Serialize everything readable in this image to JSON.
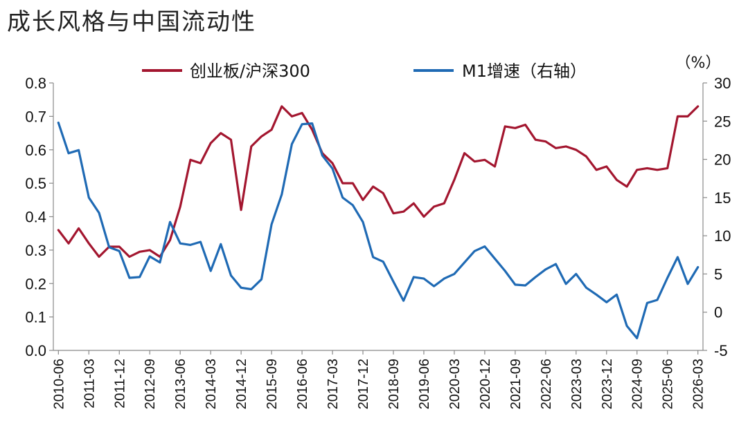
{
  "chart_data": {
    "type": "line",
    "title": "成长风格与中国流动性",
    "x": [
      "2010-06",
      "2010-09",
      "2010-12",
      "2011-03",
      "2011-06",
      "2011-09",
      "2011-12",
      "2012-03",
      "2012-06",
      "2012-09",
      "2012-12",
      "2013-03",
      "2013-06",
      "2013-09",
      "2013-12",
      "2014-03",
      "2014-06",
      "2014-09",
      "2014-12",
      "2015-03",
      "2015-06",
      "2015-09",
      "2015-12",
      "2016-03",
      "2016-06",
      "2016-09",
      "2016-12",
      "2017-03",
      "2017-06",
      "2017-09",
      "2017-12",
      "2018-03",
      "2018-06",
      "2018-09",
      "2018-12",
      "2019-03",
      "2019-06",
      "2019-09",
      "2019-12",
      "2020-03",
      "2020-06",
      "2020-09",
      "2020-12",
      "2021-03",
      "2021-06",
      "2021-09",
      "2021-12",
      "2022-03",
      "2022-06",
      "2022-09",
      "2022-12",
      "2023-03",
      "2023-06",
      "2023-09",
      "2023-12",
      "2024-03",
      "2024-06",
      "2024-09",
      "2024-12",
      "2025-03",
      "2025-06",
      "2025-09",
      "2025-12",
      "2026-03"
    ],
    "xtick_labels": [
      "2010-06",
      "2011-03",
      "2011-12",
      "2012-09",
      "2013-06",
      "2014-03",
      "2014-12",
      "2015-09",
      "2016-06",
      "2017-03",
      "2017-12",
      "2018-09",
      "2019-06",
      "2020-03",
      "2020-12",
      "2021-09",
      "2022-06",
      "2023-03",
      "2023-12",
      "2024-09",
      "2025-06",
      "2026-03"
    ],
    "series": [
      {
        "name": "创业板/沪深300",
        "axis": "left",
        "color": "#a3162f",
        "values": [
          0.36,
          0.32,
          0.365,
          0.32,
          0.28,
          0.31,
          0.31,
          0.28,
          0.295,
          0.3,
          0.28,
          0.33,
          0.43,
          0.57,
          0.56,
          0.62,
          0.65,
          0.63,
          0.42,
          0.61,
          0.64,
          0.66,
          0.73,
          0.7,
          0.71,
          0.66,
          0.59,
          0.56,
          0.5,
          0.5,
          0.45,
          0.49,
          0.47,
          0.41,
          0.415,
          0.44,
          0.4,
          0.43,
          0.44,
          0.51,
          0.59,
          0.565,
          0.57,
          0.55,
          0.67,
          0.665,
          0.675,
          0.63,
          0.625,
          0.605,
          0.61,
          0.6,
          0.58,
          0.54,
          0.55,
          0.51,
          0.49,
          0.54,
          0.545,
          0.54,
          0.545,
          0.7,
          0.7,
          0.73
        ]
      },
      {
        "name": "M1增速（右轴）",
        "axis": "right",
        "color": "#1f6ab4",
        "values": [
          24.8,
          20.8,
          21.2,
          15.0,
          13.0,
          8.5,
          8.0,
          4.5,
          4.6,
          7.3,
          6.5,
          11.8,
          9.0,
          8.8,
          9.2,
          5.4,
          8.9,
          4.8,
          3.2,
          3.0,
          4.3,
          11.5,
          15.4,
          22.0,
          24.6,
          24.7,
          20.5,
          18.8,
          15.0,
          14.0,
          11.8,
          7.2,
          6.6,
          4.0,
          1.5,
          4.6,
          4.4,
          3.4,
          4.4,
          5.0,
          6.5,
          8.0,
          8.6,
          7.0,
          5.4,
          3.6,
          3.5,
          4.6,
          5.6,
          6.3,
          3.7,
          5.0,
          3.2,
          2.3,
          1.3,
          2.3,
          -1.8,
          -3.4,
          1.2,
          1.6,
          4.5,
          7.2,
          3.7,
          5.9
        ]
      }
    ],
    "y_left": {
      "min": 0.0,
      "max": 0.8,
      "ticks": [
        "0.0",
        "0.1",
        "0.2",
        "0.3",
        "0.4",
        "0.5",
        "0.6",
        "0.7",
        "0.8"
      ]
    },
    "y_right": {
      "min": -5,
      "max": 30,
      "unit": "（%）",
      "ticks": [
        "-5",
        "0",
        "5",
        "10",
        "15",
        "20",
        "25",
        "30"
      ]
    },
    "legend_position": "top-center",
    "grid": false
  }
}
